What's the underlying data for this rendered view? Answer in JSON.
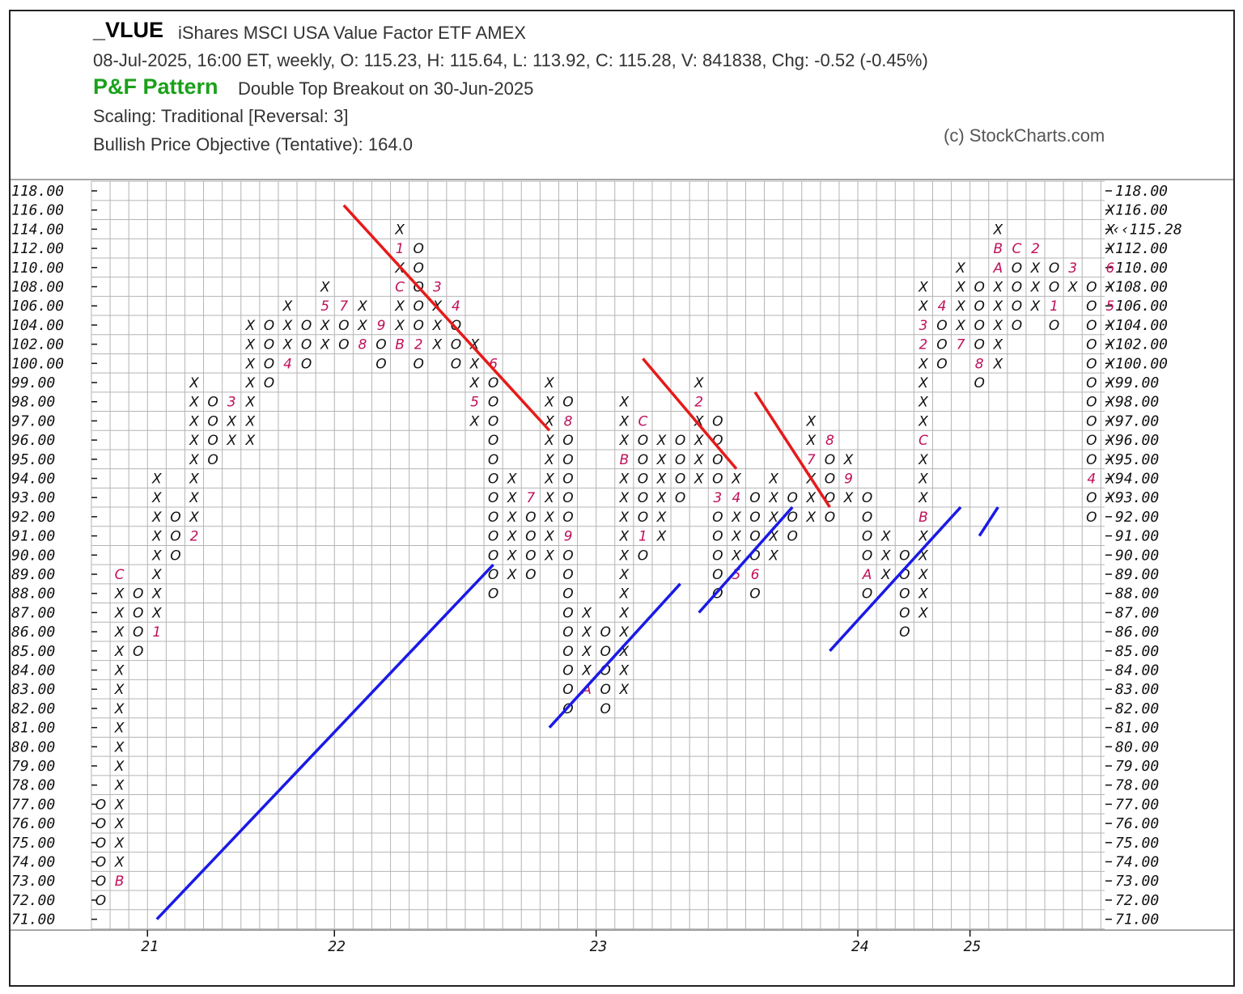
{
  "header": {
    "symbol": "_VLUE",
    "name": "iShares MSCI USA Value Factor ETF  AMEX",
    "quote_line": "08-Jul-2025, 16:00 ET, weekly, O: 115.23, H: 115.64, L: 113.92, C: 115.28, V: 841838, Chg: -0.52 (-0.45%)",
    "pattern_label": "P&F Pattern",
    "pattern_text": "Double Top Breakout on 30-Jun-2025",
    "scaling": "Scaling: Traditional [Reversal: 3]",
    "objective": "Bullish Price Objective (Tentative): 164.0",
    "copyright": "(c) StockCharts.com"
  },
  "colors": {
    "x": "#111111",
    "o": "#111111",
    "month": "#c0105a",
    "up_trend": "#1a1ae6",
    "down_trend": "#e61a1a",
    "grid": "#b4b4b4",
    "last_price": "#c0105a"
  },
  "chart_data": {
    "type": "point-and-figure",
    "box_levels": [
      "118.00",
      "116.00",
      "114.00",
      "112.00",
      "110.00",
      "108.00",
      "106.00",
      "104.00",
      "102.00",
      "100.00",
      "99.00",
      "98.00",
      "97.00",
      "96.00",
      "95.00",
      "94.00",
      "93.00",
      "92.00",
      "91.00",
      "90.00",
      "89.00",
      "88.00",
      "87.00",
      "86.00",
      "85.00",
      "84.00",
      "83.00",
      "82.00",
      "81.00",
      "80.00",
      "79.00",
      "78.00",
      "77.00",
      "76.00",
      "75.00",
      "74.00",
      "73.00",
      "72.00",
      "71.00"
    ],
    "left_highlight_level": "114.00",
    "last_price_label": "‹‹115.28",
    "last_price_level": "114.00",
    "x_ticks": [
      {
        "label": "21",
        "col": 3
      },
      {
        "label": "22",
        "col": 13
      },
      {
        "label": "23",
        "col": 27
      },
      {
        "label": "24",
        "col": 41
      },
      {
        "label": "25",
        "col": 47
      }
    ],
    "columns": [
      {
        "t": "O",
        "top": "77.00",
        "bottom": "72.00",
        "months": {
          "72.00": "",
          "73.00": "",
          "74.00": "",
          "75.00": "",
          "76.00": ""
        }
      },
      {
        "t": "X",
        "top": "89.00",
        "bottom": "73.00",
        "months": {
          "73.00": "B",
          "89.00": "C"
        }
      },
      {
        "t": "O",
        "top": "88.00",
        "bottom": "85.00"
      },
      {
        "t": "X",
        "top": "94.00",
        "bottom": "86.00",
        "months": {
          "86.00": "1"
        }
      },
      {
        "t": "O",
        "top": "92.00",
        "bottom": "90.00"
      },
      {
        "t": "X",
        "top": "99.00",
        "bottom": "91.00",
        "months": {
          "91.00": "2"
        }
      },
      {
        "t": "O",
        "top": "98.00",
        "bottom": "95.00"
      },
      {
        "t": "X",
        "top": "98.00",
        "bottom": "96.00",
        "months": {
          "98.00": "3"
        }
      },
      {
        "t": "X",
        "top": "104.00",
        "bottom": "96.00",
        "prev": true
      },
      {
        "t": "O",
        "top": "104.00",
        "bottom": "99.00"
      },
      {
        "t": "X",
        "top": "106.00",
        "bottom": "100.00",
        "months": {
          "100.00": "4"
        }
      },
      {
        "t": "O",
        "top": "104.00",
        "bottom": "100.00"
      },
      {
        "t": "X",
        "top": "108.00",
        "bottom": "102.00",
        "months": {
          "106.00": "5"
        }
      },
      {
        "t": "O",
        "top": "106.00",
        "bottom": "102.00",
        "months": {
          "106.00": "7"
        }
      },
      {
        "t": "X",
        "top": "106.00",
        "bottom": "102.00",
        "months": {
          "102.00": "8"
        }
      },
      {
        "t": "O",
        "top": "104.00",
        "bottom": "100.00",
        "months": {
          "104.00": "9"
        }
      },
      {
        "t": "X",
        "top": "114.00",
        "bottom": "102.00",
        "months": {
          "102.00": "B",
          "108.00": "C",
          "112.00": "1"
        }
      },
      {
        "t": "O",
        "top": "112.00",
        "bottom": "100.00",
        "months": {
          "102.00": "2"
        }
      },
      {
        "t": "X",
        "top": "108.00",
        "bottom": "102.00",
        "months": {
          "108.00": "3"
        }
      },
      {
        "t": "O",
        "top": "106.00",
        "bottom": "100.00",
        "months": {
          "106.00": "4"
        }
      },
      {
        "t": "X",
        "top": "102.00",
        "bottom": "97.00",
        "months": {
          "98.00": "5"
        }
      },
      {
        "t": "O",
        "top": "100.00",
        "bottom": "88.00",
        "months": {
          "100.00": "6"
        }
      },
      {
        "t": "X",
        "top": "94.00",
        "bottom": "89.00"
      },
      {
        "t": "O",
        "top": "93.00",
        "bottom": "89.00",
        "months": {
          "93.00": "7"
        }
      },
      {
        "t": "X",
        "top": "99.00",
        "bottom": "90.00"
      },
      {
        "t": "O",
        "top": "98.00",
        "bottom": "82.00",
        "months": {
          "97.00": "8",
          "91.00": "9"
        }
      },
      {
        "t": "X",
        "top": "87.00",
        "bottom": "83.00",
        "months": {
          "83.00": "A"
        }
      },
      {
        "t": "O",
        "top": "86.00",
        "bottom": "82.00"
      },
      {
        "t": "X",
        "top": "98.00",
        "bottom": "83.00",
        "months": {
          "95.00": "B"
        }
      },
      {
        "t": "O",
        "top": "97.00",
        "bottom": "90.00",
        "months": {
          "97.00": "C",
          "91.00": "1"
        }
      },
      {
        "t": "X",
        "top": "96.00",
        "bottom": "91.00"
      },
      {
        "t": "O",
        "top": "96.00",
        "bottom": "93.00"
      },
      {
        "t": "X",
        "top": "99.00",
        "bottom": "94.00",
        "months": {
          "98.00": "2"
        }
      },
      {
        "t": "O",
        "top": "97.00",
        "bottom": "88.00",
        "months": {
          "93.00": "3"
        }
      },
      {
        "t": "X",
        "top": "94.00",
        "bottom": "89.00",
        "months": {
          "93.00": "4",
          "89.00": "5"
        }
      },
      {
        "t": "O",
        "top": "93.00",
        "bottom": "88.00",
        "months": {
          "89.00": "6"
        }
      },
      {
        "t": "X",
        "top": "94.00",
        "bottom": "90.00"
      },
      {
        "t": "O",
        "top": "93.00",
        "bottom": "91.00"
      },
      {
        "t": "X",
        "top": "97.00",
        "bottom": "92.00",
        "months": {
          "95.00": "7"
        }
      },
      {
        "t": "O",
        "top": "96.00",
        "bottom": "92.00",
        "months": {
          "96.00": "8"
        }
      },
      {
        "t": "X",
        "top": "95.00",
        "bottom": "93.00",
        "months": {
          "94.00": "9"
        }
      },
      {
        "t": "O",
        "top": "93.00",
        "bottom": "88.00",
        "months": {
          "89.00": "A"
        }
      },
      {
        "t": "X",
        "top": "91.00",
        "bottom": "89.00"
      },
      {
        "t": "O",
        "top": "90.00",
        "bottom": "86.00"
      },
      {
        "t": "X",
        "top": "108.00",
        "bottom": "87.00",
        "months": {
          "92.00": "B",
          "96.00": "C",
          "104.00": "3",
          "102.00": "2"
        }
      },
      {
        "t": "O",
        "top": "106.00",
        "bottom": "100.00",
        "months": {
          "106.00": "4"
        }
      },
      {
        "t": "X",
        "top": "110.00",
        "bottom": "102.00",
        "months": {
          "102.00": "7"
        }
      },
      {
        "t": "O",
        "top": "108.00",
        "bottom": "99.00",
        "months": {
          "100.00": "8"
        }
      },
      {
        "t": "X",
        "top": "114.00",
        "bottom": "100.00",
        "months": {
          "110.00": "A",
          "112.00": "B"
        }
      },
      {
        "t": "O",
        "top": "112.00",
        "bottom": "104.00",
        "months": {
          "112.00": "C"
        }
      },
      {
        "t": "X",
        "top": "112.00",
        "bottom": "106.00",
        "months": {
          "112.00": "2"
        }
      },
      {
        "t": "O",
        "top": "110.00",
        "bottom": "104.00",
        "months": {
          "106.00": "1"
        }
      },
      {
        "t": "X",
        "top": "110.00",
        "bottom": "108.00",
        "months": {
          "110.00": "3"
        }
      },
      {
        "t": "O",
        "top": "108.00",
        "bottom": "92.00",
        "months": {
          "94.00": "4"
        }
      },
      {
        "t": "X",
        "top": "116.00",
        "bottom": "93.00",
        "months": {
          "110.00": "6",
          "106.00": "5"
        }
      }
    ],
    "trendlines": [
      {
        "kind": "up",
        "from": {
          "col": 3,
          "level": "71.00"
        },
        "to": {
          "col": 21,
          "level": "89.50"
        }
      },
      {
        "kind": "up",
        "from": {
          "col": 24,
          "level": "81.00"
        },
        "to": {
          "col": 31,
          "level": "88.50"
        }
      },
      {
        "kind": "up",
        "from": {
          "col": 32,
          "level": "87.00"
        },
        "to": {
          "col": 37,
          "level": "92.50"
        }
      },
      {
        "kind": "up",
        "from": {
          "col": 39,
          "level": "85.00"
        },
        "to": {
          "col": 46,
          "level": "92.50"
        }
      },
      {
        "kind": "up",
        "from": {
          "col": 47,
          "level": "91.00"
        },
        "to": {
          "col": 48,
          "level": "92.50"
        }
      },
      {
        "kind": "down",
        "from": {
          "col": 13,
          "level": "116.50"
        },
        "to": {
          "col": 24,
          "level": "96.50"
        }
      },
      {
        "kind": "down",
        "from": {
          "col": 29,
          "level": "100.50"
        },
        "to": {
          "col": 34,
          "level": "94.50"
        }
      },
      {
        "kind": "down",
        "from": {
          "col": 35,
          "level": "98.50"
        },
        "to": {
          "col": 39,
          "level": "92.50"
        }
      }
    ]
  }
}
